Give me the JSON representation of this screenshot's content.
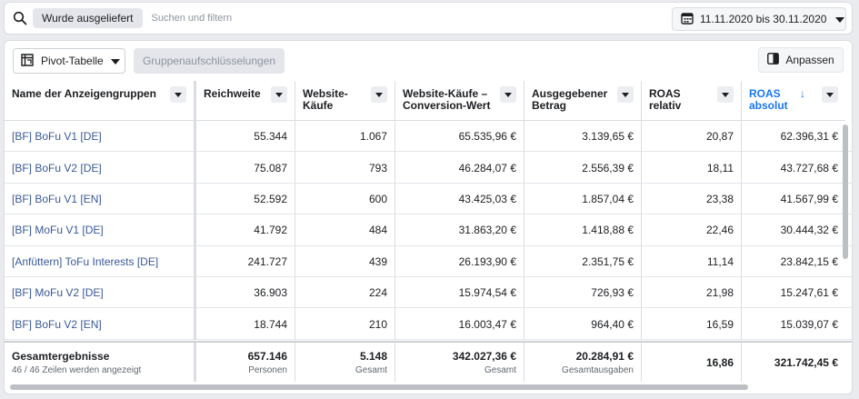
{
  "filter": {
    "chip": "Wurde ausgeliefert",
    "placeholder": "Suchen und filtern",
    "date_range": "11.11.2020 bis 30.11.2020"
  },
  "toolbar": {
    "pivot_label": "Pivot-Tabelle",
    "group_label": "Gruppenaufschlüsselungen",
    "customize_label": "Anpassen"
  },
  "columns": [
    "Name der Anzeigengruppen",
    "Reichweite",
    "Website-Käufe",
    "Website-Käufe – Conversion-Wert",
    "Ausgegebener Betrag",
    "ROAS relativ",
    "ROAS absolut"
  ],
  "sort": {
    "column": "ROAS absolut",
    "direction": "↓"
  },
  "rows": [
    [
      "[BF] BoFu V1 [DE]",
      "55.344",
      "1.067",
      "65.535,96 €",
      "3.139,65 €",
      "20,87",
      "62.396,31 €"
    ],
    [
      "[BF] BoFu V2 [DE]",
      "75.087",
      "793",
      "46.284,07 €",
      "2.556,39 €",
      "18,11",
      "43.727,68 €"
    ],
    [
      "[BF] BoFu V1 [EN]",
      "52.592",
      "600",
      "43.425,03 €",
      "1.857,04 €",
      "23,38",
      "41.567,99 €"
    ],
    [
      "[BF] MoFu V1 [DE]",
      "41.792",
      "484",
      "31.863,20 €",
      "1.418,88 €",
      "22,46",
      "30.444,32 €"
    ],
    [
      "[Anfüttern] ToFu Interests [DE]",
      "241.727",
      "439",
      "26.193,90 €",
      "2.351,75 €",
      "11,14",
      "23.842,15 €"
    ],
    [
      "[BF] MoFu V2 [DE]",
      "36.903",
      "224",
      "15.974,54 €",
      "726,93 €",
      "21,98",
      "15.247,61 €"
    ],
    [
      "[BF] BoFu V2 [EN]",
      "18.744",
      "210",
      "16.003,47 €",
      "964,40 €",
      "16,59",
      "15.039,07 €"
    ]
  ],
  "totals": {
    "label": "Gesamtergebnisse",
    "sublabel": "46 / 46 Zeilen werden angezeigt",
    "reach": "657.146",
    "reach_sub": "Personen",
    "purchases": "5.148",
    "purchases_sub": "Gesamt",
    "conv_value": "342.027,36 €",
    "conv_value_sub": "Gesamt",
    "spend": "20.284,91 €",
    "spend_sub": "Gesamtausgaben",
    "roas_rel": "16,86",
    "roas_abs": "321.742,45 €"
  },
  "colors": {
    "link": "#385898",
    "accent": "#1877f2"
  },
  "icons": [
    "search-icon",
    "calendar-icon",
    "caret-down-icon",
    "pivot-table-icon",
    "panel-icon"
  ]
}
